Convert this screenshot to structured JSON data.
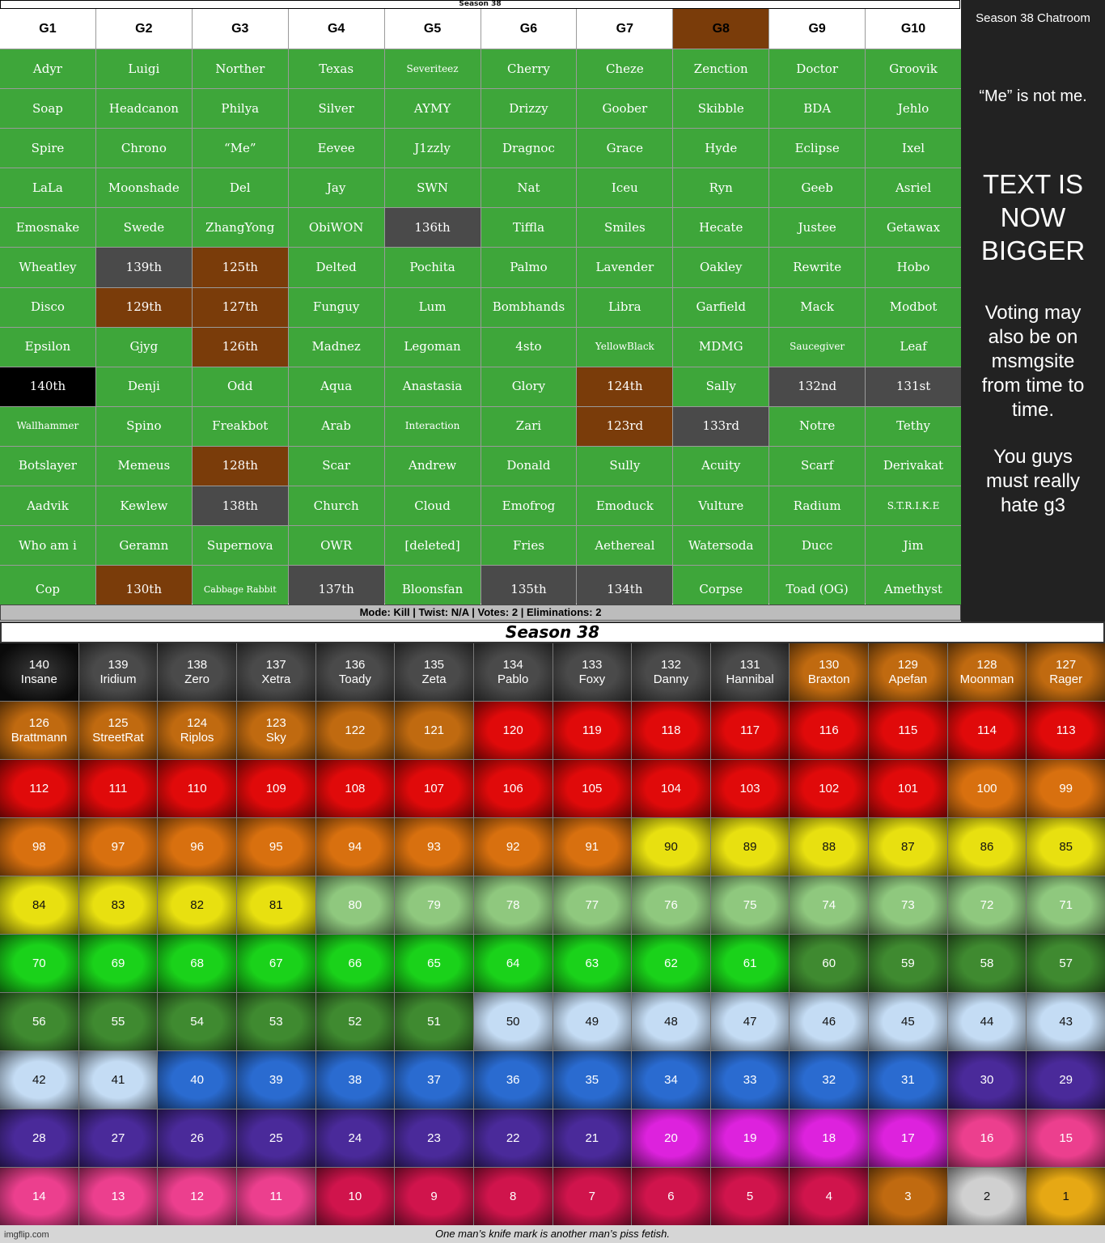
{
  "top_title": "Season 38",
  "groups": {
    "headers": [
      "G1",
      "G2",
      "G3",
      "G4",
      "G5",
      "G6",
      "G7",
      "G8",
      "G9",
      "G10"
    ],
    "rows": [
      [
        "Adyr",
        "Luigi",
        "Norther",
        "Texas",
        "Severiteez",
        "Cherry",
        "Cheze",
        "Zenction",
        "Doctor",
        "Groovik"
      ],
      [
        "Soap",
        "Headcanon",
        "Philya",
        "Silver",
        "AYMY",
        "Drizzy",
        "Goober",
        "Skibble",
        "BDA",
        "Jehlo"
      ],
      [
        "Spire",
        "Chrono",
        "“Me”",
        "Eevee",
        "J1zzly",
        "Dragnoc",
        "Grace",
        "Hyde",
        "Eclipse",
        "Ixel"
      ],
      [
        "LaLa",
        "Moonshade",
        "Del",
        "Jay",
        "SWN",
        "Nat",
        "Iceu",
        "Ryn",
        "Geeb",
        "Asriel"
      ],
      [
        "Emosnake",
        "Swede",
        "ZhangYong",
        "ObiWON",
        "136th",
        "Tiffla",
        "Smiles",
        "Hecate",
        "Justee",
        "Getawax"
      ],
      [
        "Wheatley",
        "139th",
        "125th",
        "Delted",
        "Pochita",
        "Palmo",
        "Lavender",
        "Oakley",
        "Rewrite",
        "Hobo"
      ],
      [
        "Disco",
        "129th",
        "127th",
        "Funguy",
        "Lum",
        "Bombhands",
        "Libra",
        "Garfield",
        "Mack",
        "Modbot"
      ],
      [
        "Epsilon",
        "Gjyg",
        "126th",
        "Madnez",
        "Legoman",
        "4sto",
        "YellowBlack",
        "MDMG",
        "Saucegiver",
        "Leaf"
      ],
      [
        "140th",
        "Denji",
        "Odd",
        "Aqua",
        "Anastasia",
        "Glory",
        "124th",
        "Sally",
        "132nd",
        "131st"
      ],
      [
        "Wallhammer",
        "Spino",
        "Freakbot",
        "Arab",
        "Interaction",
        "Zari",
        "123rd",
        "133rd",
        "Notre",
        "Tethy"
      ],
      [
        "Botslayer",
        "Memeus",
        "128th",
        "Scar",
        "Andrew",
        "Donald",
        "Sully",
        "Acuity",
        "Scarf",
        "Derivakat"
      ],
      [
        "Aadvik",
        "Kewlew",
        "138th",
        "Church",
        "Cloud",
        "Emofrog",
        "Emoduck",
        "Vulture",
        "Radium",
        "S.T.R.I.K.E"
      ],
      [
        "Who am i",
        "Geramn",
        "Supernova",
        "OWR",
        "[deleted]",
        "Fries",
        "Aethereal",
        "Watersoda",
        "Ducc",
        "Jim"
      ],
      [
        "Cop",
        "130th",
        "Cabbage Rabbit",
        "137th",
        "Bloonsfan",
        "135th",
        "134th",
        "Corpse",
        "Toad (OG)",
        "Amethyst"
      ]
    ]
  },
  "mode_bar": "Mode: Kill | Twist: N/A | Votes: 2 | Eliminations: 2",
  "chatroom": {
    "title": "Season 38 Chatroom",
    "note": "“Me” is not me.",
    "big_text": "TEXT IS NOW BIGGER",
    "voting": "Voting may also be on msmgsite from time to time.",
    "hate": "You guys must really hate g3"
  },
  "season_title": "Season 38",
  "places": [
    {
      "n": "140",
      "name": "Insane"
    },
    {
      "n": "139",
      "name": "Iridium"
    },
    {
      "n": "138",
      "name": "Zero"
    },
    {
      "n": "137",
      "name": "Xetra"
    },
    {
      "n": "136",
      "name": "Toady"
    },
    {
      "n": "135",
      "name": "Zeta"
    },
    {
      "n": "134",
      "name": "Pablo"
    },
    {
      "n": "133",
      "name": "Foxy"
    },
    {
      "n": "132",
      "name": "Danny"
    },
    {
      "n": "131",
      "name": "Hannibal"
    },
    {
      "n": "130",
      "name": "Braxton"
    },
    {
      "n": "129",
      "name": "Apefan"
    },
    {
      "n": "128",
      "name": "Moonman"
    },
    {
      "n": "127",
      "name": "Rager"
    },
    {
      "n": "126",
      "name": "Brattmann"
    },
    {
      "n": "125",
      "name": "StreetRat"
    },
    {
      "n": "124",
      "name": "Riplos"
    },
    {
      "n": "123",
      "name": "Sky"
    },
    {
      "n": "122",
      "name": ""
    },
    {
      "n": "121",
      "name": ""
    },
    {
      "n": "120",
      "name": ""
    },
    {
      "n": "119",
      "name": ""
    },
    {
      "n": "118",
      "name": ""
    },
    {
      "n": "117",
      "name": ""
    },
    {
      "n": "116",
      "name": ""
    },
    {
      "n": "115",
      "name": ""
    },
    {
      "n": "114",
      "name": ""
    },
    {
      "n": "113",
      "name": ""
    },
    {
      "n": "112",
      "name": ""
    },
    {
      "n": "111",
      "name": ""
    },
    {
      "n": "110",
      "name": ""
    },
    {
      "n": "109",
      "name": ""
    },
    {
      "n": "108",
      "name": ""
    },
    {
      "n": "107",
      "name": ""
    },
    {
      "n": "106",
      "name": ""
    },
    {
      "n": "105",
      "name": ""
    },
    {
      "n": "104",
      "name": ""
    },
    {
      "n": "103",
      "name": ""
    },
    {
      "n": "102",
      "name": ""
    },
    {
      "n": "101",
      "name": ""
    },
    {
      "n": "100",
      "name": ""
    },
    {
      "n": "99",
      "name": ""
    },
    {
      "n": "98",
      "name": ""
    },
    {
      "n": "97",
      "name": ""
    },
    {
      "n": "96",
      "name": ""
    },
    {
      "n": "95",
      "name": ""
    },
    {
      "n": "94",
      "name": ""
    },
    {
      "n": "93",
      "name": ""
    },
    {
      "n": "92",
      "name": ""
    },
    {
      "n": "91",
      "name": ""
    },
    {
      "n": "90",
      "name": ""
    },
    {
      "n": "89",
      "name": ""
    },
    {
      "n": "88",
      "name": ""
    },
    {
      "n": "87",
      "name": ""
    },
    {
      "n": "86",
      "name": ""
    },
    {
      "n": "85",
      "name": ""
    },
    {
      "n": "84",
      "name": ""
    },
    {
      "n": "83",
      "name": ""
    },
    {
      "n": "82",
      "name": ""
    },
    {
      "n": "81",
      "name": ""
    },
    {
      "n": "80",
      "name": ""
    },
    {
      "n": "79",
      "name": ""
    },
    {
      "n": "78",
      "name": ""
    },
    {
      "n": "77",
      "name": ""
    },
    {
      "n": "76",
      "name": ""
    },
    {
      "n": "75",
      "name": ""
    },
    {
      "n": "74",
      "name": ""
    },
    {
      "n": "73",
      "name": ""
    },
    {
      "n": "72",
      "name": ""
    },
    {
      "n": "71",
      "name": ""
    },
    {
      "n": "70",
      "name": ""
    },
    {
      "n": "69",
      "name": ""
    },
    {
      "n": "68",
      "name": ""
    },
    {
      "n": "67",
      "name": ""
    },
    {
      "n": "66",
      "name": ""
    },
    {
      "n": "65",
      "name": ""
    },
    {
      "n": "64",
      "name": ""
    },
    {
      "n": "63",
      "name": ""
    },
    {
      "n": "62",
      "name": ""
    },
    {
      "n": "61",
      "name": ""
    },
    {
      "n": "60",
      "name": ""
    },
    {
      "n": "59",
      "name": ""
    },
    {
      "n": "58",
      "name": ""
    },
    {
      "n": "57",
      "name": ""
    },
    {
      "n": "56",
      "name": ""
    },
    {
      "n": "55",
      "name": ""
    },
    {
      "n": "54",
      "name": ""
    },
    {
      "n": "53",
      "name": ""
    },
    {
      "n": "52",
      "name": ""
    },
    {
      "n": "51",
      "name": ""
    },
    {
      "n": "50",
      "name": ""
    },
    {
      "n": "49",
      "name": ""
    },
    {
      "n": "48",
      "name": ""
    },
    {
      "n": "47",
      "name": ""
    },
    {
      "n": "46",
      "name": ""
    },
    {
      "n": "45",
      "name": ""
    },
    {
      "n": "44",
      "name": ""
    },
    {
      "n": "43",
      "name": ""
    },
    {
      "n": "42",
      "name": ""
    },
    {
      "n": "41",
      "name": ""
    },
    {
      "n": "40",
      "name": ""
    },
    {
      "n": "39",
      "name": ""
    },
    {
      "n": "38",
      "name": ""
    },
    {
      "n": "37",
      "name": ""
    },
    {
      "n": "36",
      "name": ""
    },
    {
      "n": "35",
      "name": ""
    },
    {
      "n": "34",
      "name": ""
    },
    {
      "n": "33",
      "name": ""
    },
    {
      "n": "32",
      "name": ""
    },
    {
      "n": "31",
      "name": ""
    },
    {
      "n": "30",
      "name": ""
    },
    {
      "n": "29",
      "name": ""
    },
    {
      "n": "28",
      "name": ""
    },
    {
      "n": "27",
      "name": ""
    },
    {
      "n": "26",
      "name": ""
    },
    {
      "n": "25",
      "name": ""
    },
    {
      "n": "24",
      "name": ""
    },
    {
      "n": "23",
      "name": ""
    },
    {
      "n": "22",
      "name": ""
    },
    {
      "n": "21",
      "name": ""
    },
    {
      "n": "20",
      "name": ""
    },
    {
      "n": "19",
      "name": ""
    },
    {
      "n": "18",
      "name": ""
    },
    {
      "n": "17",
      "name": ""
    },
    {
      "n": "16",
      "name": ""
    },
    {
      "n": "15",
      "name": ""
    },
    {
      "n": "14",
      "name": ""
    },
    {
      "n": "13",
      "name": ""
    },
    {
      "n": "12",
      "name": ""
    },
    {
      "n": "11",
      "name": ""
    },
    {
      "n": "10",
      "name": ""
    },
    {
      "n": "9",
      "name": ""
    },
    {
      "n": "8",
      "name": ""
    },
    {
      "n": "7",
      "name": ""
    },
    {
      "n": "6",
      "name": ""
    },
    {
      "n": "5",
      "name": ""
    },
    {
      "n": "4",
      "name": ""
    },
    {
      "n": "3",
      "name": ""
    },
    {
      "n": "2",
      "name": ""
    },
    {
      "n": "1",
      "name": ""
    }
  ],
  "footer": {
    "caption": "One man’s knife mark is another man’s piss fetish.",
    "watermark": "imgflip.com"
  },
  "colors": {
    "alive": "#3ea63a",
    "header": "#ffffff",
    "highlight_header": "#7a3c0a",
    "elim_gray": "#4a4a4a",
    "elim_brown": "#7a3c0a",
    "elim_black": "#000000",
    "chatroom_bg": "#222222"
  }
}
